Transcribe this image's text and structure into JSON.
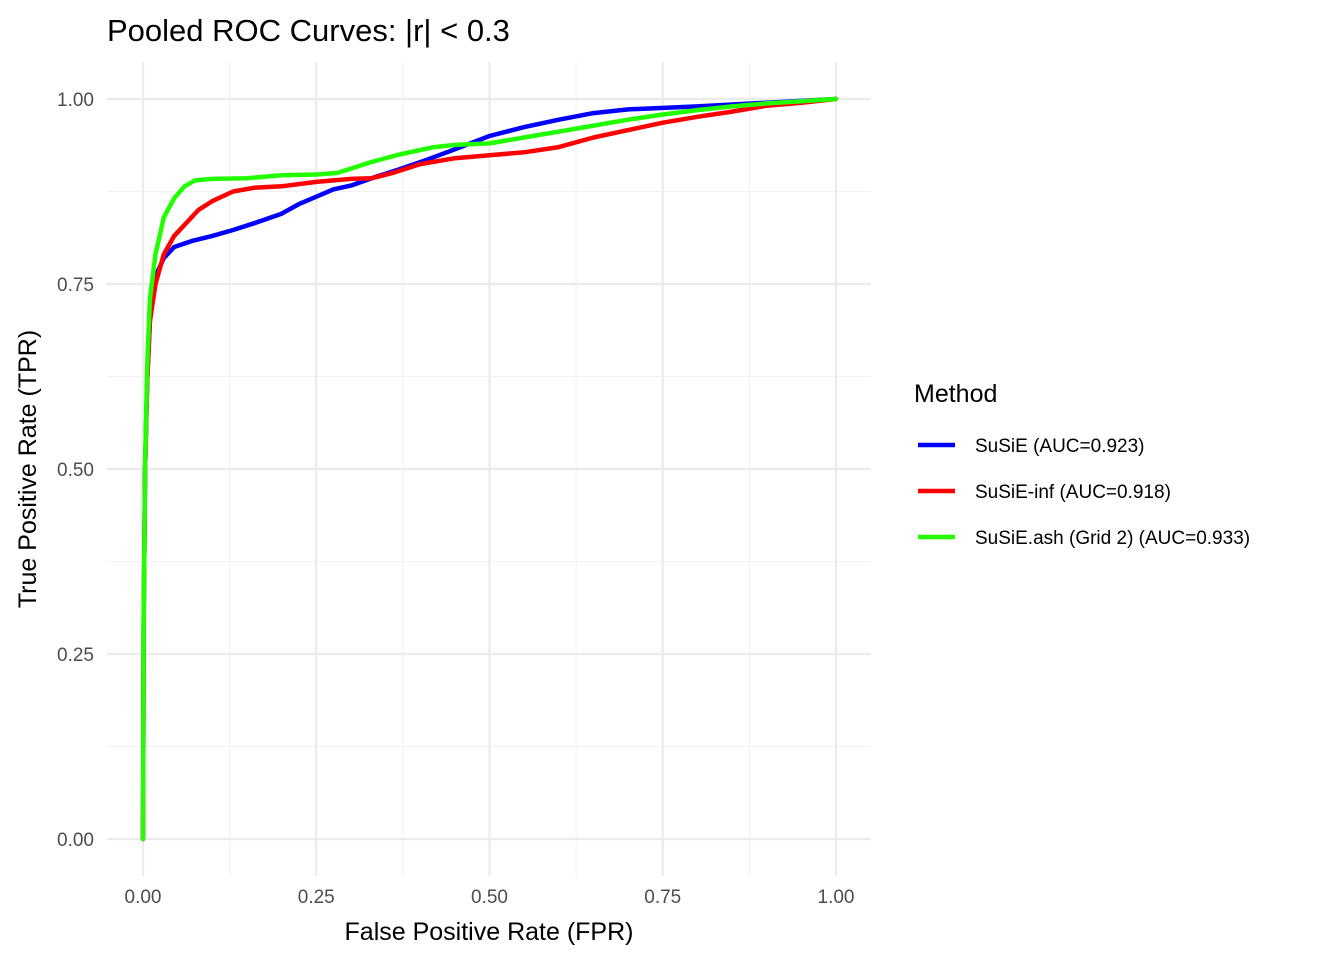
{
  "chart_data": {
    "type": "line",
    "title": "Pooled ROC Curves: |r| < 0.3",
    "xlabel": "False Positive Rate (FPR)",
    "ylabel": "True Positive Rate (TPR)",
    "xlim": [
      0,
      1
    ],
    "ylim": [
      0,
      1
    ],
    "x_ticks": [
      "0.00",
      "0.25",
      "0.50",
      "0.75",
      "1.00"
    ],
    "y_ticks": [
      "0.00",
      "0.25",
      "0.50",
      "0.75",
      "1.00"
    ],
    "grid": true,
    "legend": {
      "title": "Method",
      "position": "right"
    },
    "series": [
      {
        "name": "SuSiE (AUC=0.923)",
        "color": "#0000ff",
        "points": [
          [
            0,
            0
          ],
          [
            0.001,
            0.3
          ],
          [
            0.003,
            0.5
          ],
          [
            0.006,
            0.62
          ],
          [
            0.01,
            0.7
          ],
          [
            0.018,
            0.76
          ],
          [
            0.03,
            0.785
          ],
          [
            0.045,
            0.8
          ],
          [
            0.07,
            0.808
          ],
          [
            0.1,
            0.815
          ],
          [
            0.13,
            0.823
          ],
          [
            0.16,
            0.832
          ],
          [
            0.2,
            0.845
          ],
          [
            0.225,
            0.858
          ],
          [
            0.25,
            0.868
          ],
          [
            0.275,
            0.878
          ],
          [
            0.3,
            0.883
          ],
          [
            0.33,
            0.893
          ],
          [
            0.37,
            0.905
          ],
          [
            0.41,
            0.918
          ],
          [
            0.45,
            0.932
          ],
          [
            0.5,
            0.95
          ],
          [
            0.55,
            0.962
          ],
          [
            0.6,
            0.972
          ],
          [
            0.65,
            0.981
          ],
          [
            0.7,
            0.986
          ],
          [
            0.8,
            0.99
          ],
          [
            0.9,
            0.995
          ],
          [
            1.0,
            1.0
          ]
        ]
      },
      {
        "name": "SuSiE-inf (AUC=0.918)",
        "color": "#ff0000",
        "points": [
          [
            0,
            0
          ],
          [
            0.001,
            0.3
          ],
          [
            0.003,
            0.5
          ],
          [
            0.006,
            0.62
          ],
          [
            0.01,
            0.7
          ],
          [
            0.018,
            0.75
          ],
          [
            0.03,
            0.79
          ],
          [
            0.045,
            0.815
          ],
          [
            0.06,
            0.83
          ],
          [
            0.08,
            0.85
          ],
          [
            0.1,
            0.862
          ],
          [
            0.13,
            0.875
          ],
          [
            0.16,
            0.88
          ],
          [
            0.2,
            0.882
          ],
          [
            0.25,
            0.888
          ],
          [
            0.3,
            0.892
          ],
          [
            0.33,
            0.893
          ],
          [
            0.36,
            0.9
          ],
          [
            0.4,
            0.912
          ],
          [
            0.45,
            0.92
          ],
          [
            0.5,
            0.924
          ],
          [
            0.55,
            0.928
          ],
          [
            0.6,
            0.935
          ],
          [
            0.65,
            0.948
          ],
          [
            0.7,
            0.958
          ],
          [
            0.75,
            0.968
          ],
          [
            0.8,
            0.976
          ],
          [
            0.85,
            0.983
          ],
          [
            0.9,
            0.991
          ],
          [
            0.95,
            0.995
          ],
          [
            1.0,
            1.0
          ]
        ]
      },
      {
        "name": "SuSiE.ash (Grid 2) (AUC=0.933)",
        "color": "#22ff00",
        "points": [
          [
            0,
            0
          ],
          [
            0.001,
            0.3
          ],
          [
            0.003,
            0.5
          ],
          [
            0.006,
            0.64
          ],
          [
            0.01,
            0.73
          ],
          [
            0.018,
            0.79
          ],
          [
            0.03,
            0.84
          ],
          [
            0.045,
            0.866
          ],
          [
            0.06,
            0.882
          ],
          [
            0.075,
            0.89
          ],
          [
            0.1,
            0.892
          ],
          [
            0.15,
            0.893
          ],
          [
            0.2,
            0.897
          ],
          [
            0.25,
            0.898
          ],
          [
            0.28,
            0.9
          ],
          [
            0.3,
            0.906
          ],
          [
            0.33,
            0.915
          ],
          [
            0.37,
            0.925
          ],
          [
            0.42,
            0.935
          ],
          [
            0.45,
            0.938
          ],
          [
            0.5,
            0.94
          ],
          [
            0.55,
            0.948
          ],
          [
            0.6,
            0.956
          ],
          [
            0.65,
            0.964
          ],
          [
            0.7,
            0.972
          ],
          [
            0.75,
            0.979
          ],
          [
            0.8,
            0.985
          ],
          [
            0.85,
            0.99
          ],
          [
            0.9,
            0.994
          ],
          [
            0.95,
            0.997
          ],
          [
            1.0,
            1.0
          ]
        ]
      }
    ]
  }
}
